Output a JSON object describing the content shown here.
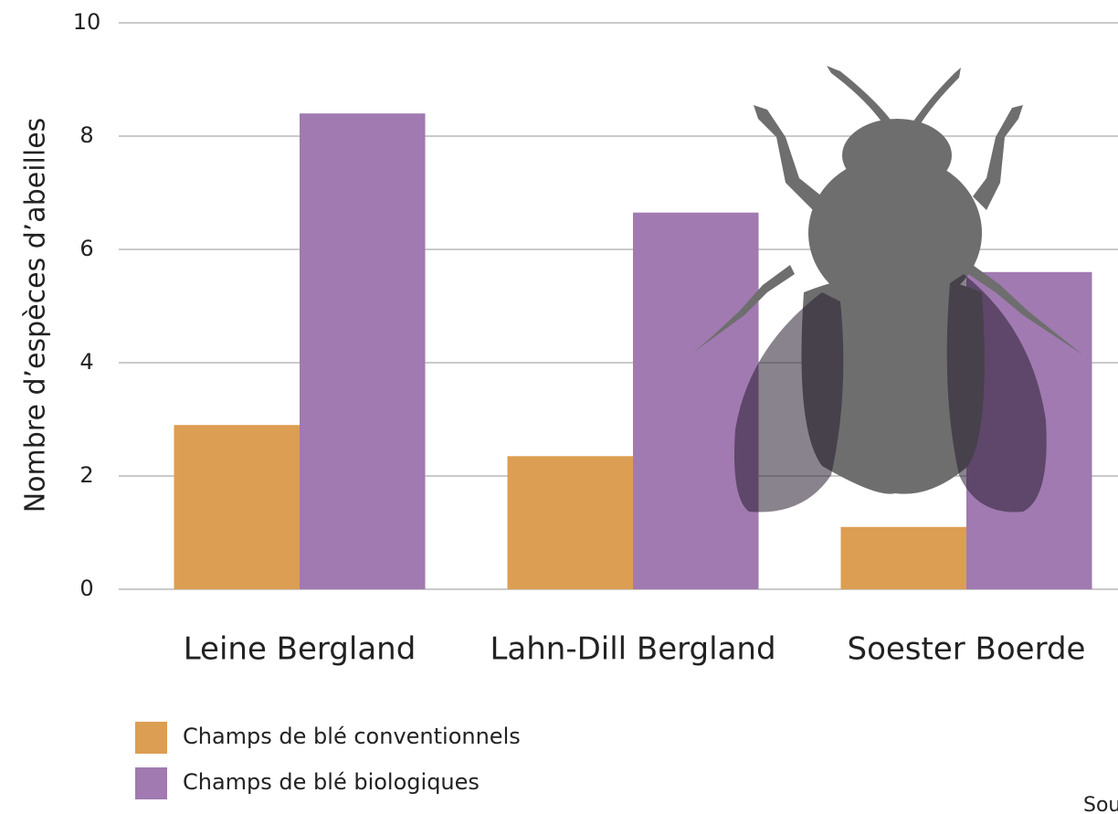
{
  "chart_data": {
    "type": "bar",
    "ylabel": "Nombre d’espèces d’abeilles",
    "categories": [
      "Leine Bergland",
      "Lahn-Dill Bergland",
      "Soester Boerde"
    ],
    "series": [
      {
        "name": "Champs de blé conventionnels",
        "color": "#dc9e52",
        "values": [
          2.9,
          2.35,
          1.1
        ]
      },
      {
        "name": "Champs de blé biologiques",
        "color": "#a07ab0",
        "values": [
          8.4,
          6.65,
          5.6
        ]
      }
    ],
    "ylim": [
      0,
      10
    ],
    "yticks": [
      0,
      2,
      4,
      6,
      8,
      10
    ],
    "grid": true,
    "source": "Sou"
  }
}
